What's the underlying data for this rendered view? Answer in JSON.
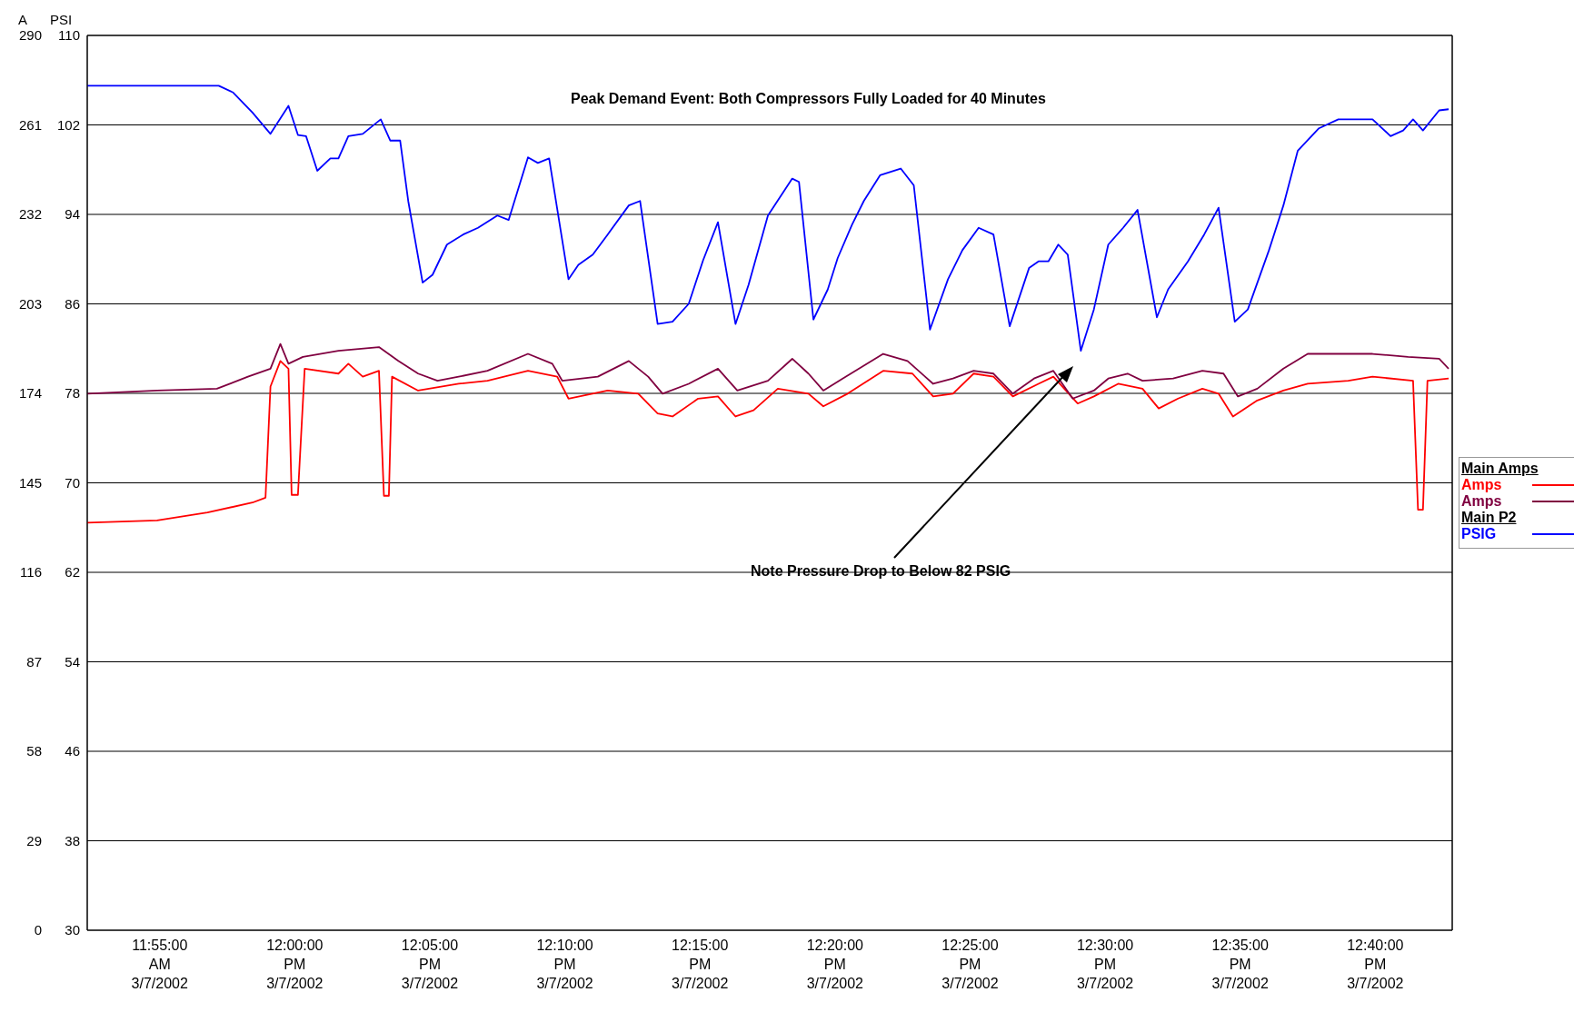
{
  "chart_data": {
    "type": "line",
    "ylabel": "A",
    "y2label": "PSI",
    "annotations": [
      "Peak Demand Event: Both Compressors Fully Loaded for 40 Minutes",
      "Note Pressure Drop to Below 82 PSIG",
      "Main Amps",
      "Main P2"
    ],
    "xlim": [
      "2002-03-07T11:52:19",
      "2002-03-07T12:42:51"
    ],
    "xticks": [
      {
        "value": "2002-03-07T11:55:00",
        "label": "11:55:00 AM 3/7/2002"
      },
      {
        "value": "2002-03-07T12:00:00",
        "label": "12:00:00 PM 3/7/2002"
      },
      {
        "value": "2002-03-07T12:05:00",
        "label": "12:05:00 PM 3/7/2002"
      },
      {
        "value": "2002-03-07T12:10:00",
        "label": "12:10:00 PM 3/7/2002"
      },
      {
        "value": "2002-03-07T12:15:00",
        "label": "12:15:00 PM 3/7/2002"
      },
      {
        "value": "2002-03-07T12:20:00",
        "label": "12:20:00 PM 3/7/2002"
      },
      {
        "value": "2002-03-07T12:25:00",
        "label": "12:25:00 PM 3/7/2002"
      },
      {
        "value": "2002-03-07T12:30:00",
        "label": "12:30:00 PM 3/7/2002"
      },
      {
        "value": "2002-03-07T12:35:00",
        "label": "12:35:00 PM 3/7/2002"
      },
      {
        "value": "2002-03-07T12:40:00",
        "label": "12:40:00 PM 3/7/2002"
      }
    ],
    "ylim": [
      0,
      290
    ],
    "yticks": [
      0,
      29,
      58,
      87,
      116,
      145,
      174,
      203,
      232,
      261,
      290
    ],
    "y2lim": [
      30,
      110
    ],
    "y2ticks": [
      30,
      38,
      46,
      54,
      62,
      70,
      78,
      86,
      94,
      102,
      110
    ],
    "grid": true,
    "legend": "right",
    "marker": "none",
    "line_style": "solid",
    "series": [
      {
        "name": "Amps",
        "color": "#ff0000",
        "x": [
          "2002-03-07T11:52:19",
          "2002-03-07T11:54:54",
          "2002-03-07T11:56:46",
          "2002-03-07T11:58:26",
          "2002-03-07T11:58:55",
          "2002-03-07T11:59:06",
          "2002-03-07T11:59:28",
          "2002-03-07T11:59:46",
          "2002-03-07T11:59:53",
          "2002-03-07T12:00:07",
          "2002-03-07T12:00:22",
          "2002-03-07T12:01:37",
          "2002-03-07T12:01:59",
          "2002-03-07T12:02:31",
          "2002-03-07T12:03:07",
          "2002-03-07T12:03:18",
          "2002-03-07T12:03:29",
          "2002-03-07T12:03:36",
          "2002-03-07T12:04:34",
          "2002-03-07T12:06:04",
          "2002-03-07T12:07:08",
          "2002-03-07T12:08:38",
          "2002-03-07T12:09:43",
          "2002-03-07T12:10:08",
          "2002-03-07T12:11:35",
          "2002-03-07T12:12:43",
          "2002-03-07T12:13:26",
          "2002-03-07T12:13:59",
          "2002-03-07T12:14:56",
          "2002-03-07T12:15:40",
          "2002-03-07T12:16:19",
          "2002-03-07T12:16:59",
          "2002-03-07T12:17:53",
          "2002-03-07T12:19:01",
          "2002-03-07T12:19:34",
          "2002-03-07T12:20:28",
          "2002-03-07T12:21:47",
          "2002-03-07T12:22:52",
          "2002-03-07T12:23:38",
          "2002-03-07T12:24:22",
          "2002-03-07T12:25:08",
          "2002-03-07T12:25:52",
          "2002-03-07T12:26:35",
          "2002-03-07T12:27:32",
          "2002-03-07T12:28:05",
          "2002-03-07T12:28:59",
          "2002-03-07T12:29:35",
          "2002-03-07T12:30:29",
          "2002-03-07T12:31:23",
          "2002-03-07T12:31:59",
          "2002-03-07T12:32:42",
          "2002-03-07T12:33:36",
          "2002-03-07T12:34:12",
          "2002-03-07T12:34:44",
          "2002-03-07T12:35:38",
          "2002-03-07T12:36:36",
          "2002-03-07T12:37:30",
          "2002-03-07T12:39:00",
          "2002-03-07T12:39:54",
          "2002-03-07T12:41:24",
          "2002-03-07T12:41:35",
          "2002-03-07T12:41:46",
          "2002-03-07T12:41:56",
          "2002-03-07T12:42:43"
        ],
        "values": [
          132.1,
          132.8,
          135.4,
          138.6,
          140.2,
          176.2,
          184.5,
          182.0,
          141.1,
          141.1,
          182.0,
          180.4,
          183.6,
          179.4,
          181.3,
          140.8,
          140.8,
          179.4,
          174.9,
          177.1,
          178.1,
          181.3,
          179.4,
          172.3,
          174.9,
          173.9,
          167.5,
          166.5,
          172.3,
          173.0,
          166.5,
          168.5,
          175.5,
          173.9,
          169.8,
          173.9,
          181.3,
          180.4,
          173.0,
          173.9,
          180.4,
          179.4,
          173.0,
          177.1,
          179.4,
          170.7,
          173.0,
          177.1,
          175.5,
          169.1,
          172.3,
          175.5,
          173.9,
          166.5,
          171.7,
          174.9,
          177.1,
          178.1,
          179.4,
          178.1,
          136.3,
          136.3,
          178.1,
          178.8
        ]
      },
      {
        "name": "Amps",
        "color": "#800040",
        "x": [
          "2002-03-07T11:52:19",
          "2002-03-07T11:54:54",
          "2002-03-07T11:57:07",
          "2002-03-07T11:58:16",
          "2002-03-07T11:59:06",
          "2002-03-07T11:59:28",
          "2002-03-07T11:59:46",
          "2002-03-07T12:00:18",
          "2002-03-07T12:01:37",
          "2002-03-07T12:03:07",
          "2002-03-07T12:03:50",
          "2002-03-07T12:04:34",
          "2002-03-07T12:05:17",
          "2002-03-07T12:06:04",
          "2002-03-07T12:07:08",
          "2002-03-07T12:08:38",
          "2002-03-07T12:09:32",
          "2002-03-07T12:09:54",
          "2002-03-07T12:11:13",
          "2002-03-07T12:12:22",
          "2002-03-07T12:13:05",
          "2002-03-07T12:13:37",
          "2002-03-07T12:14:35",
          "2002-03-07T12:15:40",
          "2002-03-07T12:16:23",
          "2002-03-07T12:17:31",
          "2002-03-07T12:18:25",
          "2002-03-07T12:19:01",
          "2002-03-07T12:19:34",
          "2002-03-07T12:20:17",
          "2002-03-07T12:21:47",
          "2002-03-07T12:22:41",
          "2002-03-07T12:23:38",
          "2002-03-07T12:24:22",
          "2002-03-07T12:25:08",
          "2002-03-07T12:25:52",
          "2002-03-07T12:26:35",
          "2002-03-07T12:27:22",
          "2002-03-07T12:28:05",
          "2002-03-07T12:28:48",
          "2002-03-07T12:29:35",
          "2002-03-07T12:30:07",
          "2002-03-07T12:30:50",
          "2002-03-07T12:31:23",
          "2002-03-07T12:32:31",
          "2002-03-07T12:33:36",
          "2002-03-07T12:34:23",
          "2002-03-07T12:34:55",
          "2002-03-07T12:35:38",
          "2002-03-07T12:36:36",
          "2002-03-07T12:37:30",
          "2002-03-07T12:39:00",
          "2002-03-07T12:39:54",
          "2002-03-07T12:41:13",
          "2002-03-07T12:42:22",
          "2002-03-07T12:42:43"
        ],
        "values": [
          173.9,
          174.9,
          175.5,
          179.4,
          182.0,
          190.0,
          183.6,
          185.8,
          187.8,
          189.0,
          184.5,
          180.4,
          178.1,
          179.4,
          181.3,
          186.8,
          183.6,
          178.1,
          179.4,
          184.5,
          179.4,
          173.9,
          177.1,
          182.0,
          174.9,
          178.1,
          185.2,
          180.4,
          174.9,
          178.8,
          186.8,
          184.5,
          177.1,
          178.8,
          181.3,
          180.4,
          173.9,
          178.8,
          181.3,
          172.3,
          174.9,
          178.8,
          180.4,
          178.1,
          178.8,
          181.3,
          180.4,
          173.0,
          175.5,
          182.0,
          186.8,
          186.8,
          186.8,
          185.8,
          185.2,
          182.0
        ]
      },
      {
        "name": "PSIG",
        "color": "#0000ff",
        "axis": "y2",
        "x": [
          "2002-03-07T11:52:19",
          "2002-03-07T11:57:11",
          "2002-03-07T11:57:43",
          "2002-03-07T11:58:26",
          "2002-03-07T11:59:06",
          "2002-03-07T11:59:46",
          "2002-03-07T12:00:07",
          "2002-03-07T12:00:25",
          "2002-03-07T12:00:50",
          "2002-03-07T12:01:19",
          "2002-03-07T12:01:37",
          "2002-03-07T12:01:59",
          "2002-03-07T12:02:31",
          "2002-03-07T12:03:11",
          "2002-03-07T12:03:32",
          "2002-03-07T12:03:54",
          "2002-03-07T12:04:12",
          "2002-03-07T12:04:44",
          "2002-03-07T12:05:06",
          "2002-03-07T12:05:38",
          "2002-03-07T12:06:14",
          "2002-03-07T12:06:47",
          "2002-03-07T12:07:30",
          "2002-03-07T12:07:55",
          "2002-03-07T12:08:38",
          "2002-03-07T12:09:00",
          "2002-03-07T12:09:25",
          "2002-03-07T12:10:08",
          "2002-03-07T12:10:30",
          "2002-03-07T12:11:02",
          "2002-03-07T12:11:35",
          "2002-03-07T12:12:22",
          "2002-03-07T12:12:47",
          "2002-03-07T12:13:26",
          "2002-03-07T12:13:59",
          "2002-03-07T12:14:35",
          "2002-03-07T12:15:07",
          "2002-03-07T12:15:40",
          "2002-03-07T12:16:19",
          "2002-03-07T12:16:48",
          "2002-03-07T12:17:31",
          "2002-03-07T12:18:25",
          "2002-03-07T12:18:40",
          "2002-03-07T12:19:12",
          "2002-03-07T12:19:44",
          "2002-03-07T12:20:06",
          "2002-03-07T12:20:38",
          "2002-03-07T12:21:04",
          "2002-03-07T12:21:40",
          "2002-03-07T12:22:26",
          "2002-03-07T12:22:55",
          "2002-03-07T12:23:31",
          "2002-03-07T12:24:11",
          "2002-03-07T12:24:43",
          "2002-03-07T12:25:19",
          "2002-03-07T12:25:52",
          "2002-03-07T12:26:28",
          "2002-03-07T12:27:11",
          "2002-03-07T12:27:32",
          "2002-03-07T12:27:54",
          "2002-03-07T12:28:16",
          "2002-03-07T12:28:37",
          "2002-03-07T12:29:06",
          "2002-03-07T12:29:35",
          "2002-03-07T12:30:07",
          "2002-03-07T12:30:40",
          "2002-03-07T12:31:12",
          "2002-03-07T12:31:55",
          "2002-03-07T12:32:20",
          "2002-03-07T12:33:04",
          "2002-03-07T12:33:40",
          "2002-03-07T12:34:12",
          "2002-03-07T12:34:48",
          "2002-03-07T12:35:17",
          "2002-03-07T12:36:04",
          "2002-03-07T12:36:36",
          "2002-03-07T12:37:08",
          "2002-03-07T12:37:55",
          "2002-03-07T12:38:38",
          "2002-03-07T12:39:54",
          "2002-03-07T12:40:34",
          "2002-03-07T12:41:02",
          "2002-03-07T12:41:24",
          "2002-03-07T12:41:46",
          "2002-03-07T12:42:22",
          "2002-03-07T12:42:43"
        ],
        "values": [
          105.5,
          105.5,
          104.9,
          103.1,
          101.2,
          103.7,
          101.1,
          101.0,
          97.9,
          99.0,
          99.0,
          101.0,
          101.2,
          102.5,
          100.6,
          100.6,
          95.2,
          87.9,
          88.6,
          91.3,
          92.2,
          92.8,
          93.9,
          93.5,
          99.1,
          98.6,
          99.0,
          88.2,
          89.5,
          90.4,
          92.2,
          94.8,
          95.2,
          84.2,
          84.4,
          86.0,
          89.9,
          93.3,
          84.2,
          87.7,
          93.9,
          97.2,
          96.9,
          84.6,
          87.3,
          90.1,
          93.1,
          95.2,
          97.5,
          98.1,
          96.6,
          83.7,
          88.2,
          90.8,
          92.8,
          92.2,
          84.0,
          89.2,
          89.8,
          89.8,
          91.3,
          90.4,
          81.8,
          85.5,
          91.3,
          92.8,
          94.4,
          84.8,
          87.3,
          89.8,
          92.2,
          94.6,
          84.4,
          85.5,
          90.8,
          94.8,
          99.7,
          101.7,
          102.5,
          102.5,
          101.0,
          101.5,
          102.5,
          101.5,
          103.3,
          103.4
        ]
      }
    ]
  }
}
